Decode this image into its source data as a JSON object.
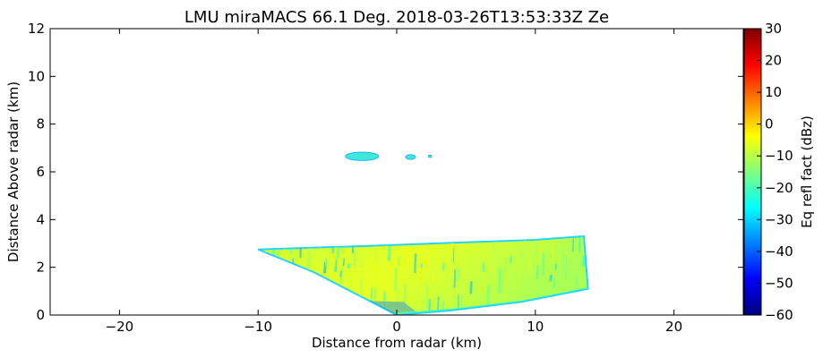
{
  "chart_data": {
    "type": "heatmap",
    "title": "LMU miraMACS 66.1 Deg. 2018-03-26T13:53:33Z  Ze",
    "xlabel": "Distance from radar (km)",
    "ylabel": "Distance Above radar  (km)",
    "xlim": [
      -25,
      25
    ],
    "ylim": [
      0,
      12
    ],
    "x_ticks": [
      -20,
      -10,
      0,
      10,
      20
    ],
    "x_tick_labels": [
      "−20",
      "−10",
      "0",
      "10",
      "20"
    ],
    "y_ticks": [
      0,
      2,
      4,
      6,
      8,
      10,
      12
    ],
    "y_tick_labels": [
      "0",
      "2",
      "4",
      "6",
      "8",
      "10",
      "12"
    ],
    "grid": false,
    "colorbar": {
      "label": "Eq refl fact (dBz)",
      "range": [
        -60,
        30
      ],
      "ticks": [
        30,
        20,
        10,
        0,
        -10,
        -20,
        -30,
        -40,
        -50,
        -60
      ],
      "tick_labels": [
        "30",
        "20",
        "10",
        "0",
        "−10",
        "−20",
        "−30",
        "−40",
        "−50",
        "−60"
      ],
      "colormap": "jet",
      "colors": [
        "#00007f",
        "#0000ff",
        "#007fff",
        "#00ffff",
        "#7fff7f",
        "#ffff00",
        "#ff7f00",
        "#ff0000",
        "#7f0000"
      ]
    },
    "echo_regions": [
      {
        "description": "low-level precipitation wedge",
        "polygon": [
          [
            -10,
            2.75
          ],
          [
            -2,
            2.9
          ],
          [
            5,
            3.05
          ],
          [
            10,
            3.15
          ],
          [
            13.5,
            3.3
          ],
          [
            13.8,
            1.1
          ],
          [
            9,
            0.55
          ],
          [
            4,
            0.2
          ],
          [
            0,
            0
          ],
          [
            -1,
            0.3
          ],
          [
            -3,
            0.9
          ],
          [
            -6,
            1.8
          ]
        ],
        "dominant_dbz": -15
      },
      {
        "description": "elevated cloud patch",
        "center": [
          -2.5,
          6.65
        ],
        "width_km": 2.4,
        "height_km": 0.35,
        "dominant_dbz": -25
      },
      {
        "description": "elevated cloud patch",
        "center": [
          1.0,
          6.62
        ],
        "width_km": 0.7,
        "height_km": 0.2,
        "dominant_dbz": -25
      },
      {
        "description": "elevated cloud patch",
        "center": [
          2.4,
          6.65
        ],
        "width_km": 0.25,
        "height_km": 0.1,
        "dominant_dbz": -25
      }
    ]
  }
}
